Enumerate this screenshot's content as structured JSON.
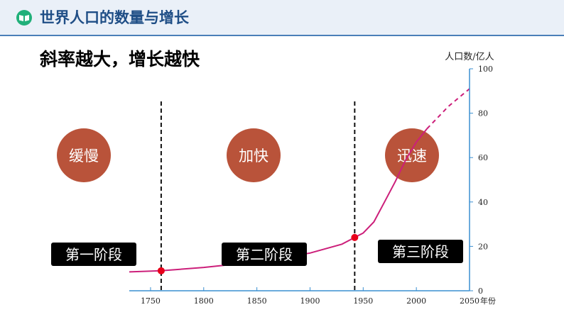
{
  "header": {
    "title": "世界人口的数量与增长",
    "icon": "book-icon",
    "accent_color": "#21b07a",
    "title_color": "#1f4e86"
  },
  "slide": {
    "title": "斜率越大，增长越快"
  },
  "chart_data": {
    "type": "line",
    "ylabel": "人口数/亿人",
    "xlabel": "年份",
    "xlim": [
      1730,
      2050
    ],
    "ylim": [
      0,
      100
    ],
    "x_ticks": [
      "1750",
      "1800",
      "1850",
      "1900",
      "1950",
      "2000",
      "2050"
    ],
    "y_ticks": [
      "0",
      "20",
      "40",
      "60",
      "80",
      "100"
    ],
    "series": [
      {
        "style": "solid",
        "color": "#cc1f7a",
        "x": [
          1730,
          1760,
          1800,
          1850,
          1900,
          1930,
          1942,
          1950,
          1960,
          1970,
          1980,
          1990,
          2000,
          2010
        ],
        "y": [
          8.5,
          9,
          10.5,
          13,
          17,
          21,
          24,
          26,
          31,
          40,
          49,
          59,
          67,
          73
        ]
      },
      {
        "style": "dashed",
        "color": "#cc1f7a",
        "x": [
          2010,
          2020,
          2030,
          2040,
          2050
        ],
        "y": [
          73,
          78,
          83,
          87,
          91
        ]
      }
    ],
    "dividers": [
      1760,
      1942
    ],
    "points": [
      {
        "x": 1760,
        "y": 9
      },
      {
        "x": 1942,
        "y": 24
      }
    ],
    "stage_labels": [
      "第一阶段",
      "第二阶段",
      "第三阶段"
    ],
    "growth_labels": [
      "缓慢",
      "加快",
      "迅速"
    ],
    "circle_color": "#b9533a"
  }
}
